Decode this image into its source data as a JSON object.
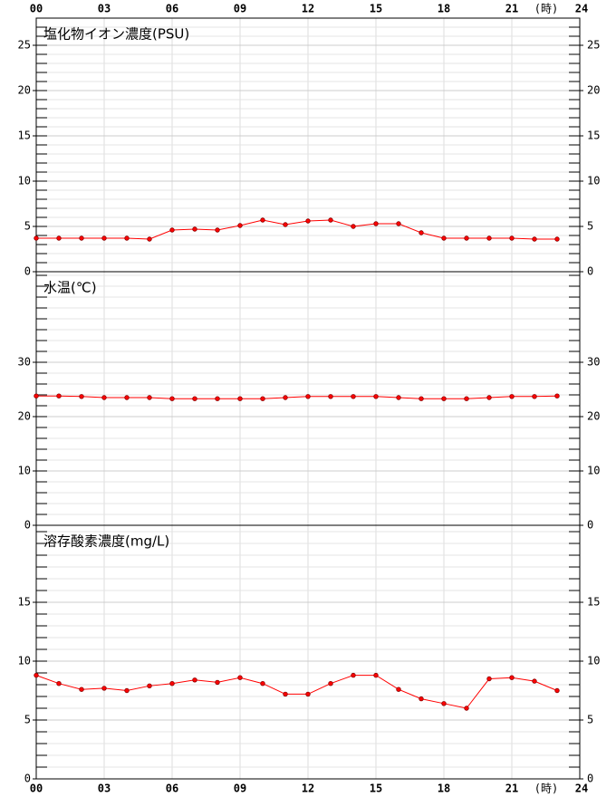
{
  "x_axis": {
    "xlim": [
      0,
      24
    ],
    "xticks": [
      {
        "value": 0,
        "label": "00"
      },
      {
        "value": 3,
        "label": "03"
      },
      {
        "value": 6,
        "label": "06"
      },
      {
        "value": 9,
        "label": "09"
      },
      12,
      15,
      18,
      21,
      24
    ],
    "unit": "(時)"
  },
  "chart_data": [
    {
      "type": "line",
      "title": "塩化物イオン濃度(PSU)",
      "color": "#ff0000",
      "x": [
        0,
        1,
        2,
        3,
        4,
        5,
        6,
        7,
        8,
        9,
        10,
        11,
        12,
        13,
        14,
        15,
        16,
        17,
        18,
        19,
        20,
        21,
        22,
        23
      ],
      "values": [
        3.7,
        3.7,
        3.7,
        3.7,
        3.7,
        3.6,
        4.6,
        4.7,
        4.6,
        5.1,
        5.7,
        5.2,
        5.6,
        5.7,
        5.0,
        5.3,
        5.3,
        4.3,
        3.7,
        3.7,
        3.7,
        3.7,
        3.6,
        3.6
      ],
      "ylim": [
        0,
        28
      ],
      "yticks": [
        0,
        5,
        10,
        15,
        20,
        25
      ],
      "grid": true
    },
    {
      "type": "line",
      "title": "水温(℃)",
      "color": "#ff0000",
      "x": [
        0,
        1,
        2,
        3,
        4,
        5,
        6,
        7,
        8,
        9,
        10,
        11,
        12,
        13,
        14,
        15,
        16,
        17,
        18,
        19,
        20,
        21,
        22,
        23
      ],
      "values": [
        23.8,
        23.8,
        23.7,
        23.5,
        23.5,
        23.5,
        23.3,
        23.3,
        23.3,
        23.3,
        23.3,
        23.5,
        23.7,
        23.7,
        23.7,
        23.7,
        23.5,
        23.3,
        23.3,
        23.3,
        23.5,
        23.7,
        23.7,
        23.8
      ],
      "ylim": [
        0,
        46.67
      ],
      "yticks": [
        0,
        10,
        20,
        30
      ],
      "grid": true
    },
    {
      "type": "line",
      "title": "溶存酸素濃度(mg/L)",
      "color": "#ff0000",
      "x": [
        0,
        1,
        2,
        3,
        4,
        5,
        6,
        7,
        8,
        9,
        10,
        11,
        12,
        13,
        14,
        15,
        16,
        17,
        18,
        19,
        20,
        21,
        22,
        23
      ],
      "values": [
        8.8,
        8.1,
        7.6,
        7.7,
        7.5,
        7.9,
        8.1,
        8.4,
        8.2,
        8.6,
        8.1,
        7.2,
        7.2,
        8.1,
        8.8,
        8.8,
        7.6,
        6.8,
        6.4,
        6.0,
        8.5,
        8.6,
        8.3,
        7.5
      ],
      "ylim": [
        0,
        21.54
      ],
      "yticks": [
        0,
        5,
        10,
        15
      ],
      "grid": true
    }
  ]
}
